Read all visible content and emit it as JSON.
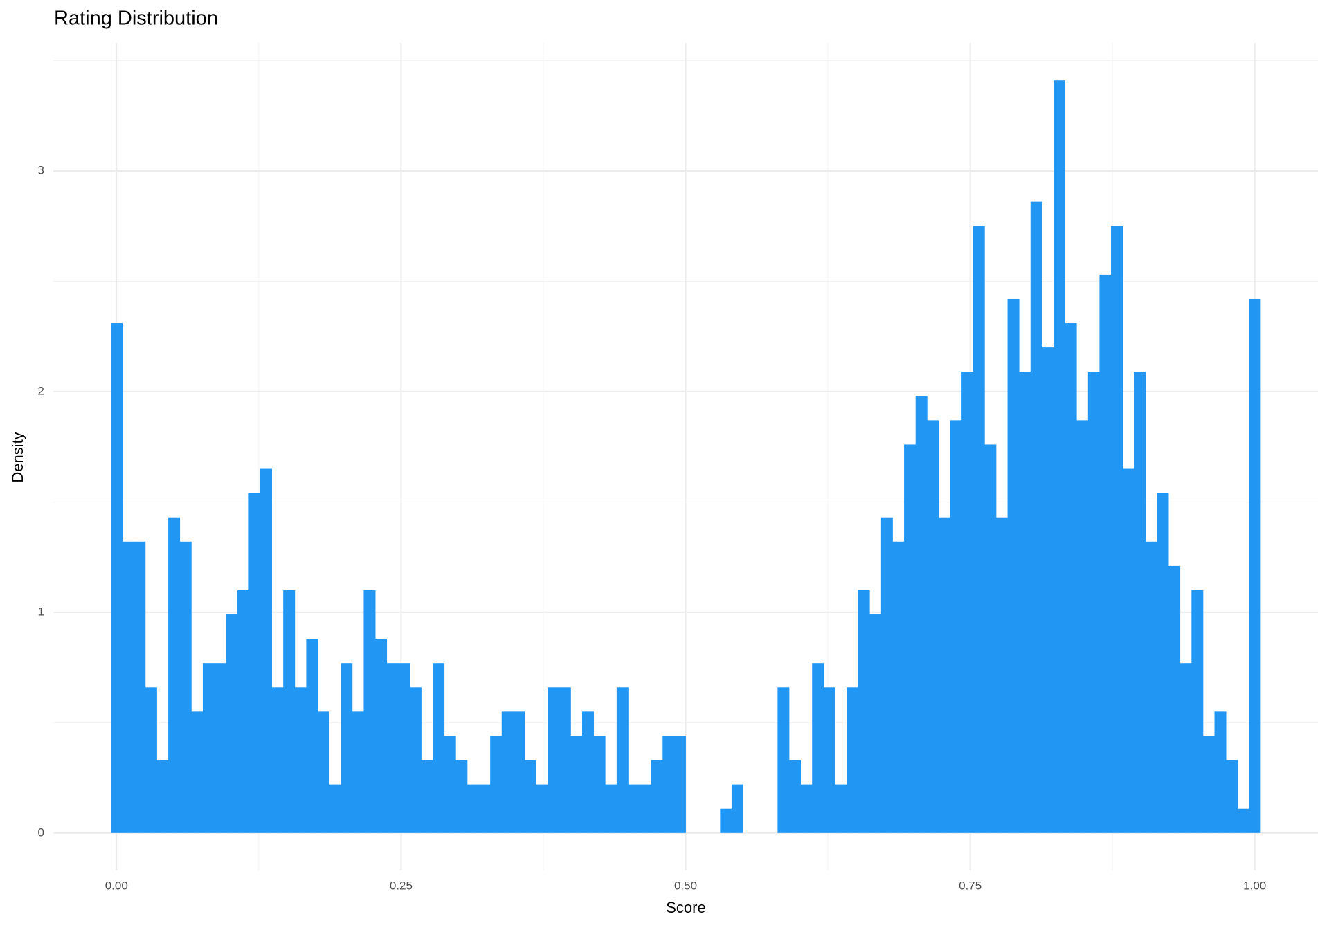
{
  "chart_data": {
    "type": "histogram",
    "title": "Rating Distribution",
    "x_label": "Score",
    "y_label": "Density",
    "color": "#2196F3",
    "grid": true,
    "bins": [
      -0.005,
      0.0051,
      0.0152,
      0.0253,
      0.0354,
      0.0455,
      0.0556,
      0.0657,
      0.0758,
      0.0859,
      0.096,
      0.1061,
      0.1162,
      0.1263,
      0.1364,
      0.1465,
      0.1566,
      0.1667,
      0.1768,
      0.1869,
      0.197,
      0.2071,
      0.2172,
      0.2273,
      0.2374,
      0.2475,
      0.2576,
      0.2677,
      0.2778,
      0.2879,
      0.298,
      0.3081,
      0.3182,
      0.3283,
      0.3384,
      0.3485,
      0.3586,
      0.3687,
      0.3788,
      0.3889,
      0.399,
      0.4091,
      0.4192,
      0.4293,
      0.4394,
      0.4495,
      0.4596,
      0.4697,
      0.4798,
      0.4899,
      0.5,
      0.5101,
      0.5202,
      0.5303,
      0.5404,
      0.5505,
      0.5606,
      0.5707,
      0.5808,
      0.5909,
      0.601,
      0.6111,
      0.6212,
      0.6313,
      0.6414,
      0.6515,
      0.6616,
      0.6717,
      0.6818,
      0.6919,
      0.702,
      0.7121,
      0.7222,
      0.7323,
      0.7424,
      0.7525,
      0.7626,
      0.7727,
      0.7828,
      0.7929,
      0.803,
      0.8131,
      0.8232,
      0.8333,
      0.8434,
      0.8535,
      0.8636,
      0.8737,
      0.8838,
      0.8939,
      0.904,
      0.9141,
      0.9242,
      0.9343,
      0.9444,
      0.9545,
      0.9646,
      0.9747,
      0.9848,
      0.9949,
      1.005
    ],
    "values": [
      2.31,
      1.32,
      1.32,
      0.66,
      0.33,
      1.43,
      1.32,
      0.55,
      0.77,
      0.77,
      0.99,
      1.1,
      1.54,
      1.65,
      0.66,
      1.1,
      0.66,
      0.88,
      0.55,
      0.22,
      0.77,
      0.55,
      1.1,
      0.88,
      0.77,
      0.77,
      0.66,
      0.33,
      0.77,
      0.44,
      0.33,
      0.22,
      0.22,
      0.44,
      0.55,
      0.55,
      0.33,
      0.22,
      0.66,
      0.66,
      0.44,
      0.55,
      0.44,
      0.22,
      0.66,
      0.22,
      0.22,
      0.33,
      0.44,
      0.44,
      0,
      0,
      0,
      0.11,
      0.22,
      0,
      0,
      0,
      0.66,
      0.33,
      0.22,
      0.77,
      0.66,
      0.22,
      0.66,
      1.1,
      0.99,
      1.43,
      1.32,
      1.76,
      1.98,
      1.87,
      1.43,
      1.87,
      2.09,
      2.75,
      1.76,
      1.43,
      2.42,
      2.09,
      2.86,
      2.2,
      3.41,
      2.31,
      1.87,
      2.09,
      2.53,
      2.75,
      1.65,
      2.09,
      1.32,
      1.54,
      1.21,
      0.77,
      1.1,
      0.44,
      0.55,
      0.33,
      0.11,
      2.42
    ],
    "xlim": [
      -0.0555,
      1.0555
    ],
    "ylim": [
      -0.17,
      3.58
    ],
    "xticks": [
      {
        "value": 0,
        "label": "0.00"
      },
      {
        "value": 0.25,
        "label": "0.25"
      },
      {
        "value": 0.5,
        "label": "0.50"
      },
      {
        "value": 0.75,
        "label": "0.75"
      },
      {
        "value": 1,
        "label": "1.00"
      }
    ],
    "yticks": [
      0,
      1,
      2,
      3
    ]
  }
}
